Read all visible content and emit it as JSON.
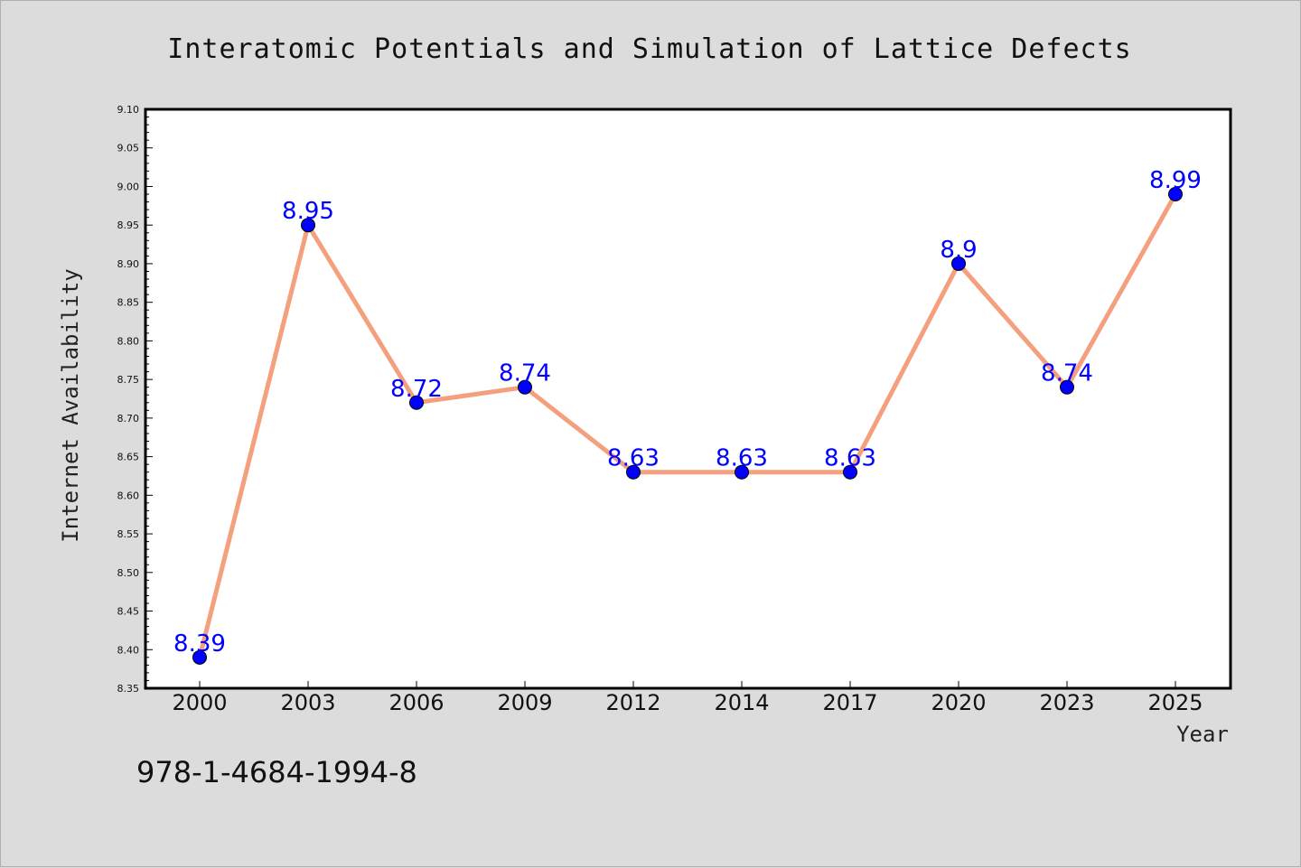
{
  "chart_data": {
    "type": "line",
    "title": "Interatomic Potentials and Simulation of Lattice Defects",
    "xlabel": "Year",
    "ylabel": "Internet Availability",
    "categories": [
      "2000",
      "2003",
      "2006",
      "2009",
      "2012",
      "2014",
      "2017",
      "2020",
      "2023",
      "2025"
    ],
    "series": [
      {
        "values": [
          8.39,
          8.95,
          8.72,
          8.74,
          8.63,
          8.63,
          8.63,
          8.9,
          8.74,
          8.99
        ]
      }
    ],
    "data_labels": [
      "8.39",
      "8.95",
      "8.72",
      "8.74",
      "8.63",
      "8.63",
      "8.63",
      "8.9",
      "8.74",
      "8.99"
    ],
    "ylim": [
      8.35,
      9.1
    ],
    "yticks": [
      "8.35",
      "8.40",
      "8.45",
      "8.50",
      "8.55",
      "8.60",
      "8.65",
      "8.70",
      "8.75",
      "8.80",
      "8.85",
      "8.90",
      "8.95",
      "9.00",
      "9.05",
      "9.10"
    ],
    "grid": false,
    "line_color": "#f4a07f",
    "marker_color": "#0000ff",
    "label_color": "#0000ff"
  },
  "footer": {
    "code": "978-1-4684-1994-8"
  }
}
